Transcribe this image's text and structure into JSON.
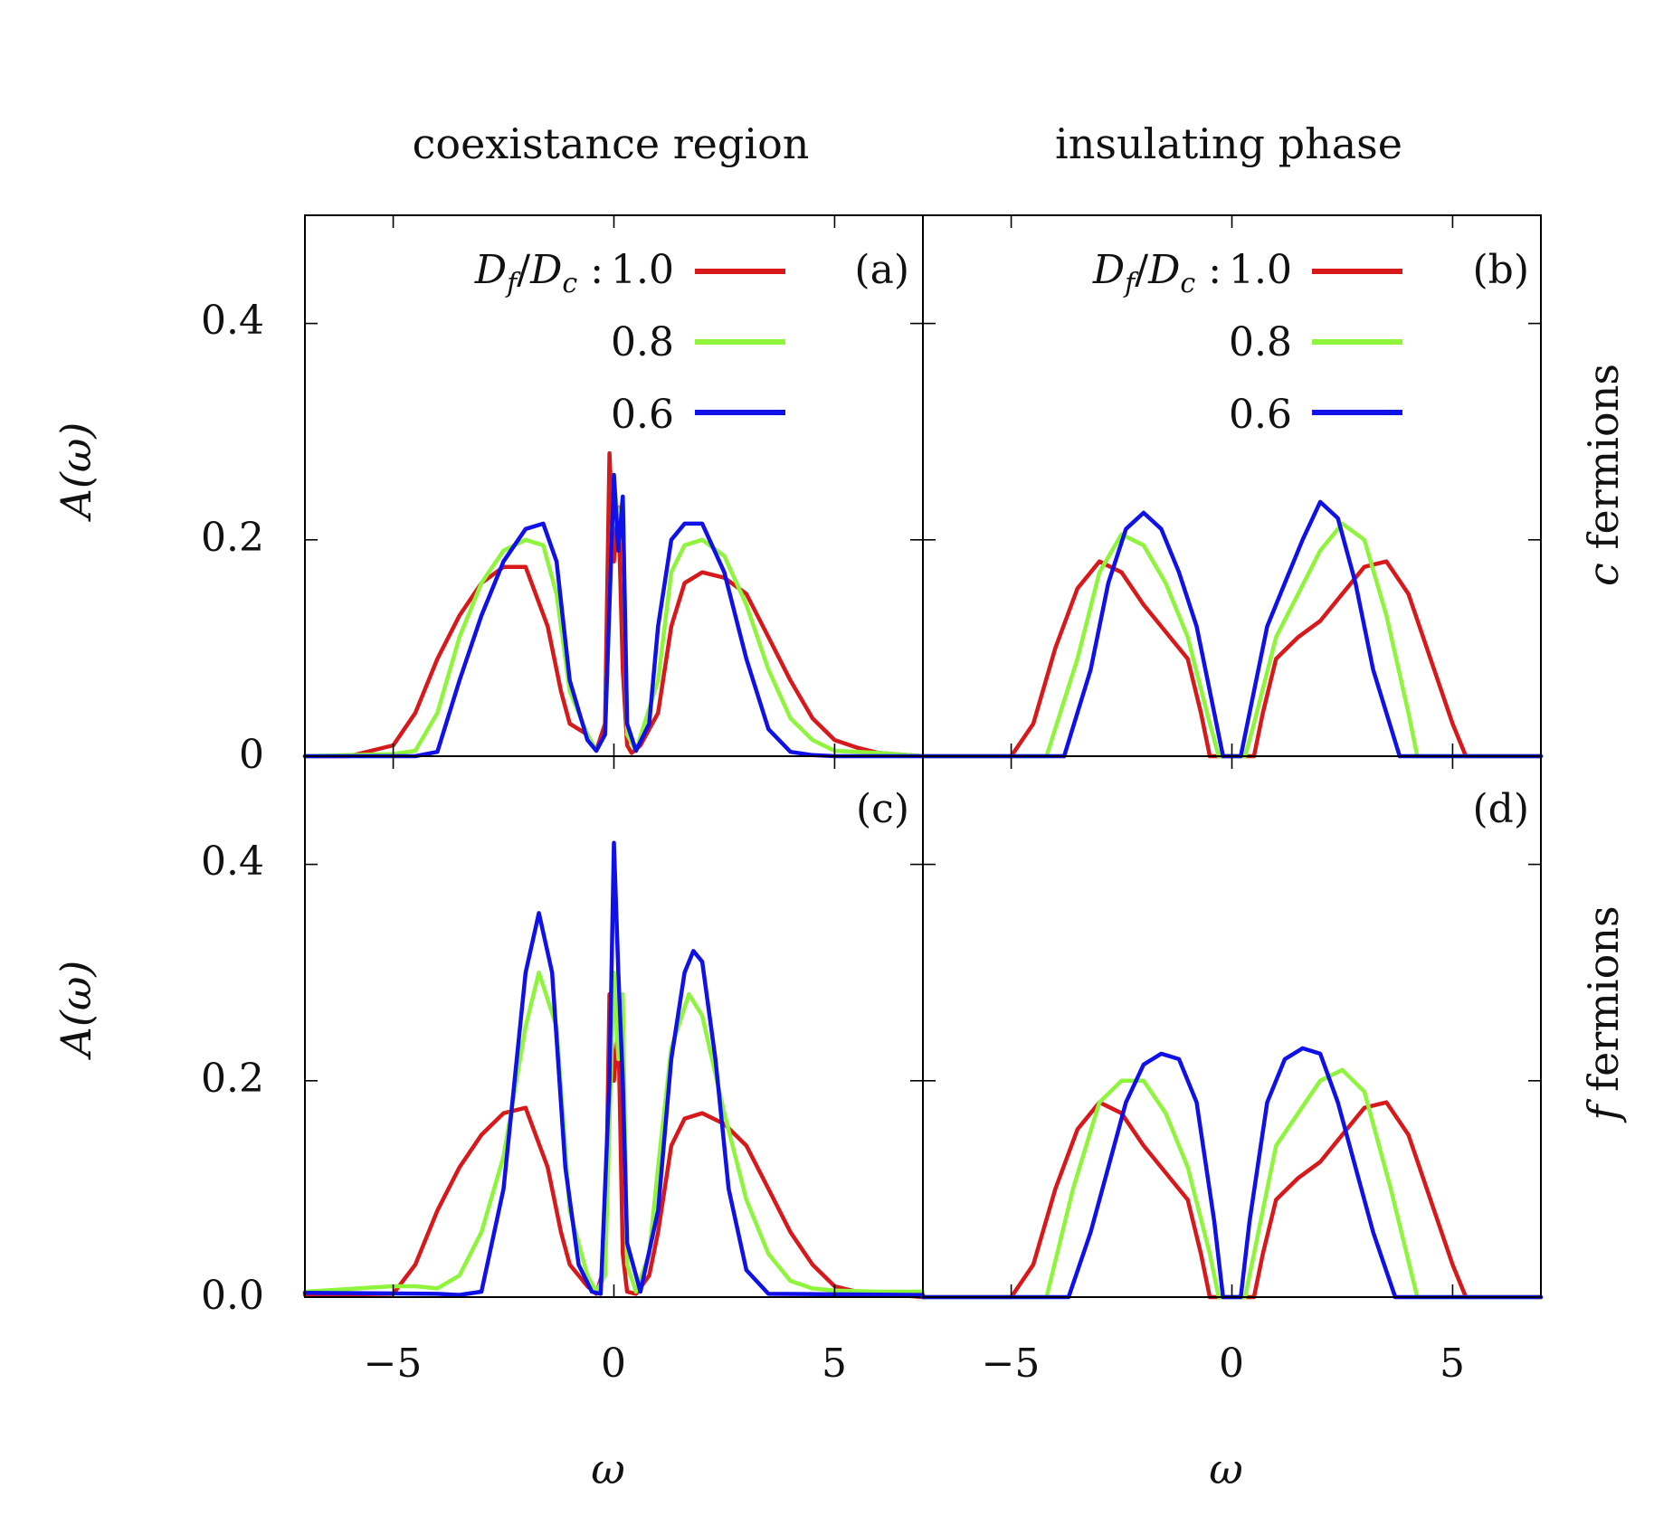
{
  "column_titles": [
    "coexistance region",
    "insulating phase"
  ],
  "row_labels": [
    {
      "symbol": "c",
      "text": " fermions"
    },
    {
      "symbol": "f",
      "text": " fermions"
    }
  ],
  "axis_labels": {
    "x": "ω",
    "y": "A(ω)"
  },
  "panel_tags": [
    "(a)",
    "(b)",
    "(c)",
    "(d)"
  ],
  "ticks": {
    "x": [
      "−5",
      "0",
      "5"
    ],
    "y_top": [
      "0",
      "0.2",
      "0.4"
    ],
    "y_bottom": [
      "0.0",
      "0.2",
      "0.4"
    ]
  },
  "legend": {
    "title": "D_f/D_c :",
    "title_parts": {
      "d1": "D",
      "s1": "f",
      "slash": "/",
      "d2": "D",
      "s2": "c",
      "colon": " :"
    },
    "entries": [
      {
        "label": "1.0",
        "color": "#d7191c"
      },
      {
        "label": "0.8",
        "color": "#8ff53c"
      },
      {
        "label": "0.6",
        "color": "#1010e8"
      }
    ]
  },
  "chart_data": [
    {
      "panel": "(a)",
      "type": "line",
      "title": "coexistance region",
      "row": "c fermions",
      "xlabel": "ω",
      "ylabel": "A(ω)",
      "xlim": [
        -7,
        7
      ],
      "ylim": [
        0,
        0.5
      ],
      "series": [
        {
          "name": "1.0",
          "x": [
            -7,
            -6,
            -5.5,
            -5,
            -4.5,
            -4,
            -3.5,
            -3,
            -2.5,
            -2,
            -1.5,
            -1.2,
            -1,
            -0.6,
            -0.4,
            -0.2,
            -0.1,
            0,
            0.1,
            0.2,
            0.3,
            0.4,
            0.6,
            1,
            1.3,
            1.6,
            2,
            2.5,
            3,
            3.5,
            4,
            4.5,
            5,
            5.5,
            6,
            7
          ],
          "y": [
            0,
            0,
            0.005,
            0.01,
            0.04,
            0.09,
            0.13,
            0.16,
            0.175,
            0.175,
            0.12,
            0.06,
            0.03,
            0.02,
            0.005,
            0.03,
            0.28,
            0.18,
            0.23,
            0.08,
            0.01,
            0.003,
            0.01,
            0.04,
            0.12,
            0.16,
            0.17,
            0.165,
            0.15,
            0.11,
            0.07,
            0.035,
            0.015,
            0.008,
            0.003,
            0
          ]
        },
        {
          "name": "0.8",
          "x": [
            -7,
            -5,
            -4.5,
            -4,
            -3.5,
            -3,
            -2.5,
            -2,
            -1.6,
            -1.3,
            -1,
            -0.6,
            -0.4,
            -0.2,
            0,
            0.1,
            0.2,
            0.3,
            0.5,
            1,
            1.3,
            1.6,
            2,
            2.5,
            3,
            3.5,
            4,
            4.5,
            5,
            6,
            7
          ],
          "y": [
            0,
            0.002,
            0.005,
            0.04,
            0.11,
            0.16,
            0.19,
            0.2,
            0.195,
            0.15,
            0.06,
            0.02,
            0.005,
            0.02,
            0.26,
            0.21,
            0.24,
            0.02,
            0.005,
            0.07,
            0.17,
            0.195,
            0.2,
            0.185,
            0.14,
            0.08,
            0.035,
            0.015,
            0.005,
            0.003,
            0
          ]
        },
        {
          "name": "0.6",
          "x": [
            -7,
            -4.5,
            -4,
            -3.5,
            -3,
            -2.5,
            -2,
            -1.6,
            -1.3,
            -1,
            -0.6,
            -0.4,
            -0.2,
            0,
            0.1,
            0.2,
            0.3,
            0.5,
            0.8,
            1,
            1.3,
            1.6,
            2,
            2.5,
            3,
            3.5,
            4,
            4.5,
            5,
            7
          ],
          "y": [
            0,
            0,
            0.004,
            0.07,
            0.13,
            0.18,
            0.21,
            0.215,
            0.18,
            0.07,
            0.015,
            0.005,
            0.02,
            0.26,
            0.19,
            0.24,
            0.03,
            0.005,
            0.03,
            0.12,
            0.2,
            0.215,
            0.215,
            0.17,
            0.09,
            0.025,
            0.004,
            0.001,
            0,
            0
          ]
        }
      ]
    },
    {
      "panel": "(b)",
      "type": "line",
      "title": "insulating phase",
      "row": "c fermions",
      "xlabel": "ω",
      "ylabel": "A(ω)",
      "xlim": [
        -7,
        7
      ],
      "ylim": [
        0,
        0.5
      ],
      "series": [
        {
          "name": "1.0",
          "x": [
            -7,
            -5,
            -4.5,
            -4,
            -3.5,
            -3,
            -2.5,
            -2,
            -1.5,
            -1,
            -0.7,
            -0.5,
            -0.2,
            0,
            0.2,
            0.5,
            0.7,
            1,
            1.5,
            2,
            2.5,
            3,
            3.5,
            4,
            4.5,
            5,
            5.3,
            7
          ],
          "y": [
            0,
            0,
            0.03,
            0.1,
            0.155,
            0.18,
            0.17,
            0.14,
            0.115,
            0.09,
            0.04,
            0,
            0,
            0,
            0,
            0,
            0.04,
            0.09,
            0.11,
            0.125,
            0.15,
            0.175,
            0.18,
            0.15,
            0.09,
            0.03,
            0,
            0
          ]
        },
        {
          "name": "0.8",
          "x": [
            -7,
            -4.2,
            -3.5,
            -3,
            -2.5,
            -2,
            -1.5,
            -1,
            -0.5,
            -0.3,
            0,
            0.3,
            0.5,
            1,
            1.5,
            2,
            2.5,
            3,
            3.5,
            4,
            4.2,
            7
          ],
          "y": [
            0,
            0,
            0.09,
            0.17,
            0.205,
            0.195,
            0.16,
            0.11,
            0.03,
            0,
            0,
            0,
            0.03,
            0.11,
            0.15,
            0.19,
            0.215,
            0.2,
            0.13,
            0.04,
            0,
            0
          ]
        },
        {
          "name": "0.6",
          "x": [
            -7,
            -3.8,
            -3.2,
            -2.8,
            -2.4,
            -2,
            -1.6,
            -1.2,
            -0.8,
            -0.4,
            -0.2,
            0,
            0.2,
            0.4,
            0.8,
            1.2,
            1.6,
            2,
            2.4,
            2.8,
            3.2,
            3.8,
            7
          ],
          "y": [
            0,
            0,
            0.08,
            0.16,
            0.21,
            0.225,
            0.21,
            0.17,
            0.12,
            0.04,
            0,
            0,
            0,
            0.04,
            0.12,
            0.16,
            0.2,
            0.235,
            0.22,
            0.16,
            0.08,
            0,
            0
          ]
        }
      ]
    },
    {
      "panel": "(c)",
      "type": "line",
      "title": "coexistance region",
      "row": "f fermions",
      "xlabel": "ω",
      "ylabel": "A(ω)",
      "xlim": [
        -7,
        7
      ],
      "ylim": [
        0,
        0.5
      ],
      "series": [
        {
          "name": "1.0",
          "x": [
            -7,
            -5,
            -4.5,
            -4,
            -3.5,
            -3,
            -2.5,
            -2,
            -1.5,
            -1.2,
            -1,
            -0.6,
            -0.4,
            -0.2,
            -0.1,
            0,
            0.1,
            0.2,
            0.3,
            0.5,
            0.8,
            1,
            1.3,
            1.6,
            2,
            2.5,
            3,
            3.5,
            4,
            4.5,
            5,
            5.5,
            7
          ],
          "y": [
            0.002,
            0.003,
            0.03,
            0.08,
            0.12,
            0.15,
            0.17,
            0.175,
            0.12,
            0.06,
            0.03,
            0.01,
            0.003,
            0.03,
            0.28,
            0.2,
            0.25,
            0.04,
            0.005,
            0.003,
            0.02,
            0.06,
            0.14,
            0.165,
            0.17,
            0.16,
            0.14,
            0.1,
            0.06,
            0.03,
            0.01,
            0.005,
            0
          ]
        },
        {
          "name": "0.8",
          "x": [
            -7,
            -5,
            -4.5,
            -4,
            -3.5,
            -3,
            -2.5,
            -2,
            -1.7,
            -1.3,
            -1,
            -0.6,
            -0.4,
            -0.2,
            0,
            0.1,
            0.2,
            0.3,
            0.5,
            0.8,
            1,
            1.3,
            1.7,
            2,
            2.5,
            3,
            3.5,
            4,
            4.5,
            5,
            6,
            7
          ],
          "y": [
            0.005,
            0.01,
            0.01,
            0.008,
            0.02,
            0.06,
            0.13,
            0.25,
            0.3,
            0.25,
            0.08,
            0.02,
            0.005,
            0.02,
            0.3,
            0.22,
            0.28,
            0.03,
            0.005,
            0.04,
            0.12,
            0.23,
            0.28,
            0.26,
            0.17,
            0.09,
            0.04,
            0.015,
            0.008,
            0.006,
            0.005,
            0.005
          ]
        },
        {
          "name": "0.6",
          "x": [
            -7,
            -4,
            -3.5,
            -3,
            -2.5,
            -2,
            -1.7,
            -1.4,
            -1.1,
            -0.8,
            -0.5,
            -0.3,
            -0.1,
            0,
            0.1,
            0.2,
            0.3,
            0.6,
            1,
            1.3,
            1.6,
            1.8,
            2,
            2.3,
            2.6,
            3,
            3.5,
            7
          ],
          "y": [
            0.004,
            0.003,
            0.002,
            0.005,
            0.1,
            0.3,
            0.355,
            0.3,
            0.12,
            0.03,
            0.005,
            0.003,
            0.2,
            0.42,
            0.3,
            0.2,
            0.05,
            0.005,
            0.08,
            0.22,
            0.3,
            0.32,
            0.31,
            0.22,
            0.1,
            0.025,
            0.003,
            0.002
          ]
        }
      ]
    },
    {
      "panel": "(d)",
      "type": "line",
      "title": "insulating phase",
      "row": "f fermions",
      "xlabel": "ω",
      "ylabel": "A(ω)",
      "xlim": [
        -7,
        7
      ],
      "ylim": [
        0,
        0.5
      ],
      "series": [
        {
          "name": "1.0",
          "x": [
            -7,
            -5,
            -4.5,
            -4,
            -3.5,
            -3,
            -2.5,
            -2,
            -1.5,
            -1,
            -0.7,
            -0.5,
            -0.2,
            0,
            0.2,
            0.5,
            0.7,
            1,
            1.5,
            2,
            2.5,
            3,
            3.5,
            4,
            4.5,
            5,
            5.3,
            7
          ],
          "y": [
            0,
            0,
            0.03,
            0.1,
            0.155,
            0.18,
            0.17,
            0.14,
            0.115,
            0.09,
            0.04,
            0,
            0,
            0,
            0,
            0,
            0.04,
            0.09,
            0.11,
            0.125,
            0.15,
            0.175,
            0.18,
            0.15,
            0.09,
            0.03,
            0,
            0
          ]
        },
        {
          "name": "0.8",
          "x": [
            -7,
            -4.2,
            -3.6,
            -3,
            -2.5,
            -2,
            -1.5,
            -1,
            -0.5,
            -0.3,
            0,
            0.3,
            0.5,
            1,
            1.5,
            2,
            2.5,
            3,
            3.6,
            4.2,
            7
          ],
          "y": [
            0,
            0,
            0.1,
            0.18,
            0.2,
            0.2,
            0.17,
            0.12,
            0.04,
            0,
            0,
            0,
            0.04,
            0.14,
            0.17,
            0.2,
            0.21,
            0.19,
            0.1,
            0,
            0
          ]
        },
        {
          "name": "0.6",
          "x": [
            -7,
            -3.7,
            -3.2,
            -2.8,
            -2.4,
            -2,
            -1.6,
            -1.2,
            -0.8,
            -0.4,
            -0.2,
            0,
            0.2,
            0.4,
            0.8,
            1.2,
            1.6,
            2,
            2.4,
            2.8,
            3.2,
            3.7,
            7
          ],
          "y": [
            0,
            0,
            0.06,
            0.12,
            0.18,
            0.215,
            0.225,
            0.22,
            0.18,
            0.07,
            0,
            0,
            0,
            0.07,
            0.18,
            0.22,
            0.23,
            0.225,
            0.18,
            0.12,
            0.06,
            0,
            0
          ]
        }
      ]
    }
  ]
}
